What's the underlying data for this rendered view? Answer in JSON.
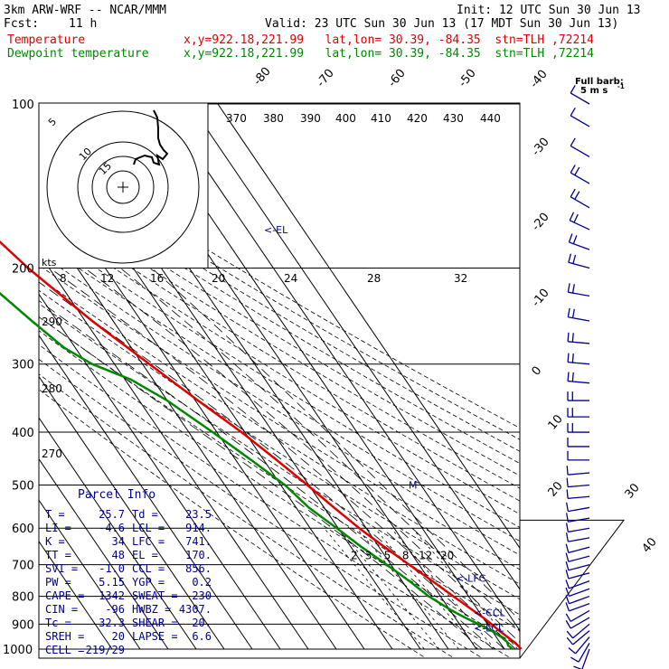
{
  "header": {
    "model": "3km ARW-WRF -- NCAR/MMM",
    "init": "Init: 12 UTC Sun 30 Jun 13",
    "fcst_label": "Fcst:",
    "fcst_value": "11 h",
    "valid": "Valid: 23 UTC Sun 30 Jun 13 (17 MDT Sun 30 Jun 13)",
    "temp_label": "Temperature",
    "temp_loc": "x,y=922.18,221.99   lat,lon= 30.39, -84.35  stn=TLH ,72214",
    "dew_label": "Dewpoint temperature",
    "dew_loc": "x,y=922.18,221.99   lat,lon= 30.39, -84.35  stn=TLH ,72214"
  },
  "colors": {
    "temperature": "#e00000",
    "dewpoint": "#008800",
    "wind": "#00008b",
    "theta": "#000000",
    "grid": "#000000",
    "labels": "#00008b"
  },
  "barb_legend": {
    "title": "Full barb:",
    "value": "5 m s",
    "unit_sup": "-1"
  },
  "hodograph": {
    "units": "kts",
    "ring_labels": [
      "5",
      "10",
      "15"
    ],
    "speed_axis": [
      "8",
      "12",
      "16",
      "20",
      "24",
      "28",
      "32"
    ]
  },
  "parcel_info": {
    "title": "Parcel Info",
    "rows": [
      [
        "T",
        "25.7",
        "Td",
        "23.5"
      ],
      [
        "LI",
        "-4.6",
        "LCL",
        "914."
      ],
      [
        "K",
        "34",
        "LFC",
        "741."
      ],
      [
        "TT",
        "48",
        "EL",
        "170."
      ],
      [
        "SVI",
        "-1.0",
        "CCL",
        "856."
      ],
      [
        "PW",
        "5.15",
        "YGP",
        "0.2"
      ],
      [
        "CAPE",
        "1342",
        "SWEAT",
        "230"
      ],
      [
        "CIN",
        "-96",
        "HWBZ",
        "4307."
      ],
      [
        "Tc",
        "32.3",
        "SHEAR",
        "20."
      ],
      [
        "SREH",
        "20",
        "LAPSE",
        "6.6"
      ],
      [
        "CELL",
        "219/29",
        "",
        ""
      ]
    ]
  },
  "levels": {
    "el": "<-EL",
    "lfc": "<-LFC",
    "ccl": "<-CCL",
    "lcl": "<-LCL",
    "m": "M"
  },
  "chart_data": {
    "type": "line",
    "title": "",
    "ylabel": "",
    "pressure_levels": [
      100,
      200,
      300,
      400,
      500,
      600,
      700,
      800,
      900,
      1000
    ],
    "isotherm_labels": [
      "-80",
      "-70",
      "-60",
      "-50",
      "-40",
      "-30",
      "-20",
      "-10",
      "0",
      "10",
      "20",
      "30",
      "40"
    ],
    "theta_labels": [
      "370",
      "380",
      "390",
      "400",
      "410",
      "420",
      "430",
      "440"
    ],
    "theta_low_labels": [
      "290",
      "280",
      "270"
    ],
    "mixing_ratio_labels": [
      "2",
      "3",
      "5",
      "8",
      "12",
      "20"
    ],
    "series": [
      {
        "name": "Temperature",
        "p": [
          1000,
          975,
          950,
          925,
          900,
          875,
          850,
          800,
          750,
          700,
          650,
          600,
          550,
          500,
          450,
          400,
          350,
          300,
          250,
          200,
          170,
          150,
          125,
          100
        ],
        "t": [
          26.0,
          25.4,
          24.0,
          22.6,
          21.4,
          20.0,
          18.2,
          14.6,
          10.8,
          6.5,
          2.0,
          -2.5,
          -6.5,
          -10.5,
          -15.4,
          -21.2,
          -29.0,
          -37.5,
          -47.5,
          -57.5,
          -63.0,
          -65.5,
          -68.5,
          -73.0
        ]
      },
      {
        "name": "Dewpoint temperature",
        "p": [
          1000,
          985,
          970,
          950,
          925,
          900,
          875,
          850,
          800,
          750,
          700,
          650,
          600,
          550,
          500,
          450,
          400,
          350,
          320,
          300,
          280,
          250,
          200,
          170,
          150,
          125,
          100
        ],
        "t": [
          23.0,
          22.2,
          22.7,
          21.8,
          19.8,
          16.8,
          13.5,
          10.6,
          5.8,
          2.6,
          -1.5,
          -6.2,
          -10.5,
          -15.5,
          -18.5,
          -24.5,
          -31.5,
          -40.0,
          -48.0,
          -58.0,
          -64.0,
          -69.0,
          -78.0,
          -85.5,
          -89.0,
          -89.5,
          -90.0
        ]
      }
    ],
    "wind_profile": {
      "p": [
        1000,
        975,
        950,
        925,
        900,
        875,
        850,
        825,
        800,
        775,
        750,
        725,
        700,
        675,
        650,
        625,
        600,
        575,
        550,
        525,
        500,
        475,
        450,
        425,
        400,
        375,
        350,
        325,
        300,
        275,
        250,
        225,
        200,
        185,
        170,
        155,
        140,
        125,
        110,
        100
      ],
      "speed_ms": [
        3,
        4,
        5,
        6,
        6,
        7,
        7,
        7,
        7,
        7,
        7,
        7,
        7,
        7,
        7,
        7,
        7,
        7,
        7,
        7,
        7,
        7,
        7,
        7,
        8,
        8,
        8,
        8,
        8,
        8,
        8,
        8,
        8,
        8,
        8,
        8,
        8,
        6,
        5,
        4
      ],
      "dir_deg": [
        200,
        210,
        220,
        230,
        230,
        240,
        240,
        250,
        250,
        250,
        250,
        255,
        255,
        255,
        255,
        260,
        260,
        260,
        260,
        265,
        265,
        265,
        270,
        270,
        270,
        270,
        270,
        275,
        275,
        275,
        280,
        280,
        285,
        290,
        295,
        300,
        300,
        300,
        300,
        300
      ]
    }
  }
}
